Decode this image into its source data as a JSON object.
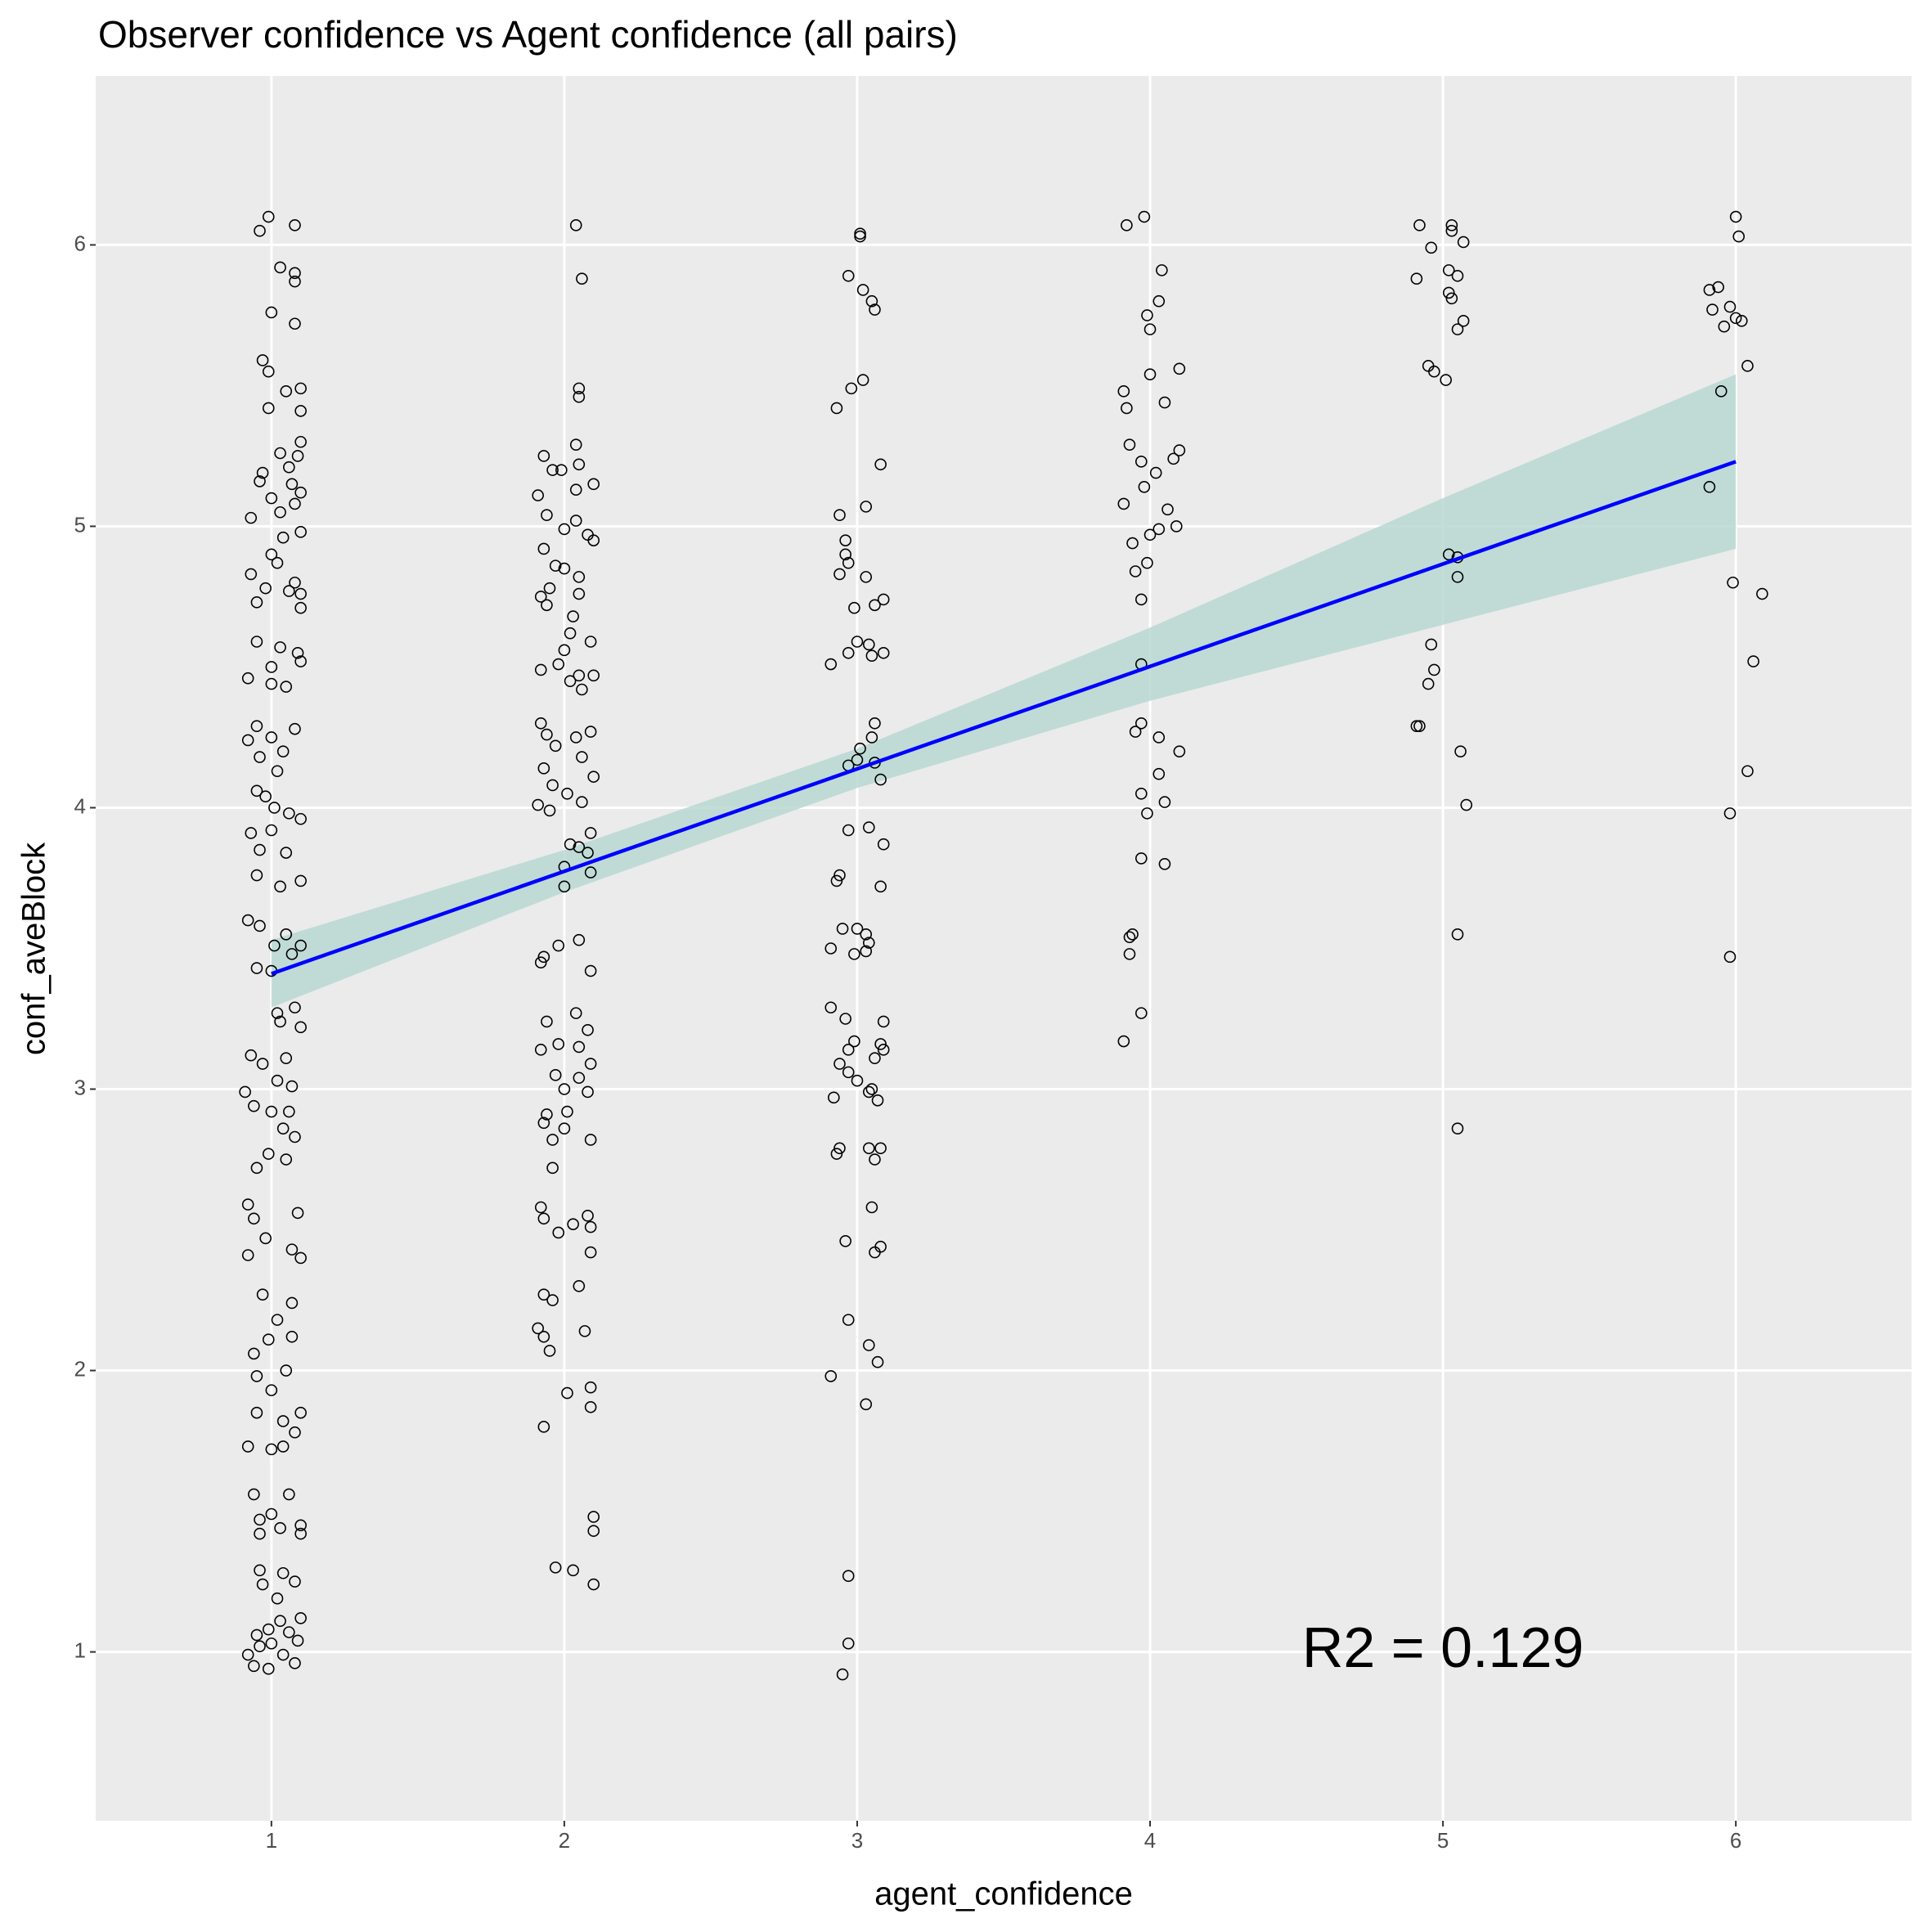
{
  "chart_data": {
    "type": "scatter",
    "title": "Observer confidence vs Agent confidence (all pairs)",
    "x_label": "agent_confidence",
    "y_label": "conf_aveBlock",
    "annotation": {
      "text": "R2 =  0.129",
      "x": 5.0,
      "y": 1.0
    },
    "xlim": [
      0.4,
      6.6
    ],
    "ylim": [
      0.4,
      6.6
    ],
    "xticks": [
      1,
      2,
      3,
      4,
      5,
      6
    ],
    "yticks": [
      1,
      2,
      3,
      4,
      5,
      6
    ],
    "grid": true,
    "point_color": "#000000",
    "background": "#ebebeb",
    "fit": {
      "x": [
        1,
        2,
        3,
        4,
        5,
        6
      ],
      "y": [
        3.41,
        3.774,
        4.138,
        4.502,
        4.866,
        5.23
      ],
      "lower": [
        3.29,
        3.7,
        4.07,
        4.38,
        4.65,
        4.92
      ],
      "upper": [
        3.53,
        3.85,
        4.21,
        4.64,
        5.1,
        5.54
      ],
      "color": "#0000ff",
      "band_color": "#b9d8d1"
    },
    "x": [
      0.99,
      0.96,
      1.08,
      1.03,
      1.08,
      1.08,
      1.0,
      1.08,
      0.97,
      0.99,
      1.05,
      1.1,
      0.99,
      1.1,
      1.1,
      1.03,
      1.09,
      1.06,
      0.97,
      0.96,
      1.07,
      1.1,
      1.0,
      1.08,
      1.03,
      0.93,
      1.1,
      1.04,
      1.0,
      1.02,
      0.93,
      1.08,
      0.98,
      1.1,
      0.95,
      1.06,
      1.1,
      0.95,
      1.03,
      1.09,
      1.0,
      1.1,
      0.92,
      1.0,
      1.05,
      0.95,
      1.08,
      0.92,
      1.0,
      1.04,
      0.96,
      1.02,
      0.95,
      0.98,
      1.01,
      1.06,
      1.1,
      0.93,
      1.0,
      0.96,
      1.05,
      1.1,
      0.95,
      1.03,
      0.92,
      0.96,
      1.05,
      1.1,
      1.01,
      0.95,
      1.07,
      1.0,
      1.08,
      1.02,
      1.1,
      1.03,
      0.93,
      1.05,
      0.97,
      1.07,
      1.02,
      0.91,
      0.94,
      1.0,
      1.06,
      1.04,
      1.08,
      0.99,
      1.05,
      0.95,
      0.92,
      0.94,
      1.09,
      0.98,
      1.07,
      0.92,
      1.1,
      0.97,
      1.07,
      1.02,
      0.99,
      1.07,
      0.94,
      1.05,
      0.95,
      1.0,
      1.1,
      0.95,
      1.04,
      1.08,
      0.92,
      1.0,
      1.04,
      0.94,
      1.06,
      0.96,
      1.0,
      1.1,
      1.03,
      0.96,
      1.1,
      0.96,
      1.04,
      0.97,
      1.08,
      1.02,
      1.1,
      1.03,
      0.99,
      0.95,
      1.06,
      1.0,
      1.09,
      0.92,
      0.96,
      1.04,
      0.94,
      1.08,
      0.99,
      2.04,
      2.06,
      2.05,
      2.05,
      2.04,
      2.05,
      1.93,
      1.96,
      1.99,
      2.1,
      2.04,
      1.91,
      1.94,
      2.04,
      2.0,
      2.08,
      2.1,
      1.93,
      1.97,
      2.0,
      2.05,
      1.95,
      2.05,
      1.92,
      1.94,
      2.03,
      2.02,
      2.0,
      2.09,
      1.98,
      1.92,
      2.05,
      2.1,
      2.02,
      2.06,
      1.92,
      1.94,
      2.04,
      2.09,
      1.97,
      2.06,
      2.1,
      1.93,
      1.96,
      2.01,
      2.06,
      1.91,
      1.95,
      2.09,
      2.02,
      2.05,
      2.08,
      2.0,
      2.09,
      2.0,
      1.98,
      2.05,
      1.93,
      1.92,
      2.09,
      2.04,
      1.94,
      2.08,
      1.98,
      2.05,
      1.92,
      2.09,
      1.97,
      2.05,
      2.0,
      2.08,
      1.94,
      2.01,
      1.93,
      2.0,
      2.09,
      1.96,
      1.96,
      1.92,
      1.93,
      2.08,
      1.98,
      2.09,
      2.03,
      2.09,
      2.05,
      1.93,
      1.96,
      1.91,
      1.93,
      1.95,
      2.07,
      2.09,
      2.01,
      2.09,
      1.93,
      2.1,
      2.1,
      1.97,
      2.03,
      2.1,
      3.01,
      3.01,
      2.97,
      3.02,
      3.05,
      3.06,
      3.02,
      2.98,
      2.93,
      3.08,
      3.03,
      2.94,
      2.96,
      2.96,
      2.97,
      2.94,
      3.03,
      3.09,
      3.06,
      2.99,
      3.0,
      3.04,
      3.09,
      2.97,
      3.05,
      2.91,
      3.06,
      3.05,
      3.01,
      3.0,
      2.97,
      3.06,
      3.08,
      2.97,
      3.04,
      3.09,
      2.94,
      2.93,
      3.08,
      2.95,
      3.0,
      3.03,
      3.04,
      3.03,
      2.99,
      2.91,
      2.91,
      2.96,
      3.09,
      2.99,
      3.08,
      3.09,
      2.97,
      3.06,
      2.94,
      2.97,
      3.0,
      3.05,
      3.04,
      2.92,
      3.07,
      2.94,
      2.93,
      3.04,
      3.08,
      3.06,
      3.05,
      2.96,
      3.08,
      3.06,
      2.97,
      3.04,
      3.07,
      2.91,
      3.03,
      2.97,
      2.97,
      2.95,
      3.92,
      3.98,
      4.04,
      4.03,
      3.99,
      4.0,
      4.1,
      4.0,
      3.91,
      3.92,
      4.05,
      3.93,
      4.1,
      4.08,
      3.97,
      4.02,
      3.98,
      3.91,
      4.06,
      4.09,
      4.03,
      4.0,
      3.94,
      3.99,
      3.95,
      3.97,
      3.97,
      3.97,
      3.95,
      4.03,
      4.1,
      4.03,
      3.97,
      4.05,
      3.99,
      3.97,
      4.05,
      3.94,
      3.93,
      3.93,
      3.97,
      3.91,
      4.92,
      5.03,
      5.03,
      4.96,
      5.07,
      5.02,
      5.05,
      4.91,
      5.02,
      5.03,
      5.07,
      5.05,
      4.95,
      4.97,
      5.01,
      5.02,
      5.05,
      5.05,
      4.96,
      4.97,
      4.95,
      4.91,
      4.92,
      5.06,
      5.08,
      5.05,
      5.05,
      6.0,
      6.01,
      5.91,
      5.94,
      5.98,
      5.92,
      5.96,
      6.0,
      6.02,
      6.04,
      5.95,
      5.91,
      5.99,
      6.09,
      6.06,
      6.04,
      5.98,
      5.98
    ],
    "y": [
      6.1,
      6.05,
      6.07,
      5.92,
      5.9,
      5.87,
      5.76,
      5.72,
      5.59,
      5.55,
      5.48,
      5.49,
      5.42,
      5.41,
      5.3,
      5.26,
      5.25,
      5.21,
      5.19,
      5.16,
      5.15,
      5.12,
      5.1,
      5.08,
      5.05,
      5.03,
      4.98,
      4.96,
      4.9,
      4.87,
      4.83,
      4.8,
      4.78,
      4.76,
      4.73,
      4.77,
      4.71,
      4.59,
      4.57,
      4.55,
      4.5,
      4.52,
      4.46,
      4.44,
      4.43,
      4.29,
      4.28,
      4.24,
      4.25,
      4.2,
      4.18,
      4.13,
      4.06,
      4.04,
      4.0,
      3.98,
      3.96,
      3.91,
      3.92,
      3.85,
      3.84,
      3.74,
      3.76,
      3.72,
      3.6,
      3.58,
      3.55,
      3.51,
      3.51,
      3.43,
      3.48,
      3.42,
      3.29,
      3.27,
      3.22,
      3.24,
      3.12,
      3.11,
      3.09,
      3.01,
      3.03,
      2.99,
      2.94,
      2.92,
      2.92,
      2.86,
      2.83,
      2.77,
      2.75,
      2.72,
      2.59,
      2.54,
      2.56,
      2.47,
      2.43,
      2.41,
      2.4,
      2.27,
      2.24,
      2.18,
      2.11,
      2.12,
      2.06,
      2.0,
      1.98,
      1.93,
      1.85,
      1.85,
      1.82,
      1.78,
      1.73,
      1.72,
      1.73,
      1.56,
      1.56,
      1.47,
      1.49,
      1.45,
      1.44,
      1.42,
      1.42,
      1.29,
      1.28,
      1.24,
      1.25,
      1.19,
      1.12,
      1.11,
      1.08,
      1.06,
      1.07,
      1.03,
      1.04,
      0.99,
      1.02,
      0.99,
      0.95,
      0.96,
      0.94,
      6.07,
      5.88,
      5.49,
      5.46,
      5.29,
      5.22,
      5.25,
      5.2,
      5.2,
      5.15,
      5.13,
      5.11,
      5.04,
      5.02,
      4.99,
      4.97,
      4.95,
      4.92,
      4.86,
      4.85,
      4.82,
      4.78,
      4.76,
      4.75,
      4.72,
      4.68,
      4.62,
      4.56,
      4.59,
      4.51,
      4.49,
      4.47,
      4.47,
      4.45,
      4.42,
      4.3,
      4.26,
      4.25,
      4.27,
      4.22,
      4.18,
      4.11,
      4.14,
      4.08,
      4.05,
      4.02,
      4.01,
      3.99,
      3.91,
      3.87,
      3.86,
      3.84,
      3.79,
      3.77,
      3.72,
      3.51,
      3.53,
      3.47,
      3.45,
      3.42,
      3.27,
      3.24,
      3.21,
      3.16,
      3.15,
      3.14,
      3.09,
      3.05,
      3.04,
      3.0,
      2.99,
      2.91,
      2.92,
      2.88,
      2.86,
      2.82,
      2.82,
      2.72,
      2.58,
      2.54,
      2.55,
      2.49,
      2.51,
      2.52,
      2.42,
      2.3,
      2.27,
      2.25,
      2.15,
      2.12,
      2.07,
      2.14,
      1.94,
      1.92,
      1.87,
      1.8,
      1.48,
      1.43,
      1.3,
      1.29,
      1.24,
      6.04,
      6.03,
      5.89,
      5.84,
      5.8,
      5.77,
      5.52,
      5.49,
      5.42,
      5.22,
      5.07,
      5.04,
      4.95,
      4.9,
      4.87,
      4.83,
      4.82,
      4.74,
      4.72,
      4.71,
      4.59,
      4.58,
      4.55,
      4.55,
      4.54,
      4.51,
      4.3,
      4.25,
      4.21,
      4.17,
      4.15,
      4.16,
      4.1,
      3.92,
      3.93,
      3.87,
      3.76,
      3.74,
      3.72,
      3.57,
      3.57,
      3.55,
      3.52,
      3.49,
      3.48,
      3.5,
      3.29,
      3.25,
      3.24,
      3.17,
      3.16,
      3.14,
      3.14,
      3.11,
      3.09,
      3.06,
      3.03,
      3.0,
      2.99,
      2.97,
      2.96,
      2.79,
      2.77,
      2.79,
      2.79,
      2.75,
      2.58,
      2.46,
      2.44,
      2.42,
      2.18,
      2.09,
      2.03,
      1.98,
      1.88,
      1.27,
      1.03,
      0.92,
      6.07,
      6.1,
      5.91,
      5.8,
      5.75,
      5.7,
      5.56,
      5.54,
      5.48,
      5.42,
      5.44,
      5.29,
      5.27,
      5.24,
      5.23,
      5.19,
      5.14,
      5.08,
      5.06,
      5.0,
      4.99,
      4.97,
      4.94,
      4.87,
      4.84,
      4.74,
      4.51,
      4.3,
      4.27,
      4.25,
      4.2,
      4.12,
      4.05,
      4.02,
      3.98,
      3.82,
      3.8,
      3.55,
      3.54,
      3.48,
      3.27,
      3.17,
      6.07,
      6.07,
      6.05,
      5.99,
      6.01,
      5.91,
      5.89,
      5.88,
      5.83,
      5.81,
      5.73,
      5.7,
      5.57,
      5.55,
      5.52,
      4.9,
      4.89,
      4.82,
      4.58,
      4.49,
      4.44,
      4.29,
      4.29,
      4.2,
      4.01,
      3.55,
      2.86,
      6.1,
      6.03,
      5.84,
      5.85,
      5.78,
      5.77,
      5.71,
      5.74,
      5.73,
      5.57,
      5.48,
      5.14,
      4.8,
      4.76,
      4.52,
      4.13,
      3.98,
      3.47
    ]
  }
}
